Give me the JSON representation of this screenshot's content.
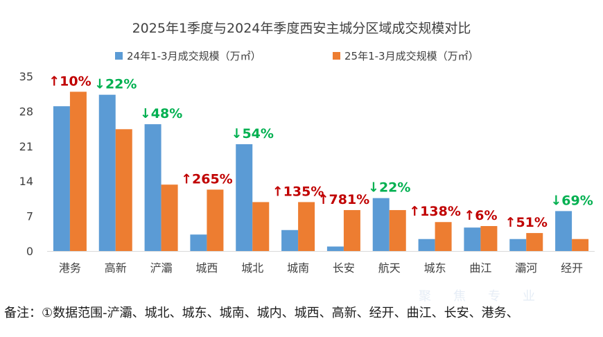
{
  "chart_data": {
    "type": "bar",
    "title": "2025年1季度与2024年季度西安主城分区域成交规模对比",
    "categories": [
      "港务",
      "高新",
      "浐灞",
      "城西",
      "城北",
      "城南",
      "长安",
      "航天",
      "城东",
      "曲江",
      "灞河",
      "经开"
    ],
    "series": [
      {
        "name": "24年1-3月成交规模（万㎡）",
        "color": "#5B9BD5",
        "values": [
          29.0,
          31.3,
          25.4,
          3.3,
          21.4,
          4.2,
          0.9,
          10.6,
          2.4,
          4.7,
          2.4,
          8.0
        ]
      },
      {
        "name": "25年1-3月成交规模（万㎡）",
        "color": "#ED7D31",
        "values": [
          31.9,
          24.4,
          13.3,
          12.3,
          9.8,
          9.8,
          8.2,
          8.2,
          5.8,
          5.0,
          3.6,
          2.4
        ]
      }
    ],
    "annotations": [
      {
        "category": "港务",
        "text": "↑10%",
        "direction": "up"
      },
      {
        "category": "高新",
        "text": "↓22%",
        "direction": "down"
      },
      {
        "category": "浐灞",
        "text": "↓48%",
        "direction": "down"
      },
      {
        "category": "城西",
        "text": "↑265%",
        "direction": "up"
      },
      {
        "category": "城北",
        "text": "↓54%",
        "direction": "down"
      },
      {
        "category": "城南",
        "text": "↑135%",
        "direction": "up"
      },
      {
        "category": "长安",
        "text": "↑781%",
        "direction": "up"
      },
      {
        "category": "航天",
        "text": "↓22%",
        "direction": "down"
      },
      {
        "category": "城东",
        "text": "↑138%",
        "direction": "up"
      },
      {
        "category": "曲江",
        "text": "↑6%",
        "direction": "up"
      },
      {
        "category": "灞河",
        "text": "↑51%",
        "direction": "up"
      },
      {
        "category": "经开",
        "text": "↓69%",
        "direction": "down"
      }
    ],
    "annotation_colors": {
      "up": "#C00000",
      "down": "#00B050"
    },
    "yticks": [
      0,
      7,
      14,
      21,
      28,
      35
    ],
    "ylim": [
      0,
      35
    ],
    "grid": false,
    "legend_position": "top-center"
  },
  "footnote": "备注：①数据范围-浐灞、城北、城东、城南、城内、城西、高新、经开、曲江、长安、港务、",
  "watermark": "聚焦专业"
}
